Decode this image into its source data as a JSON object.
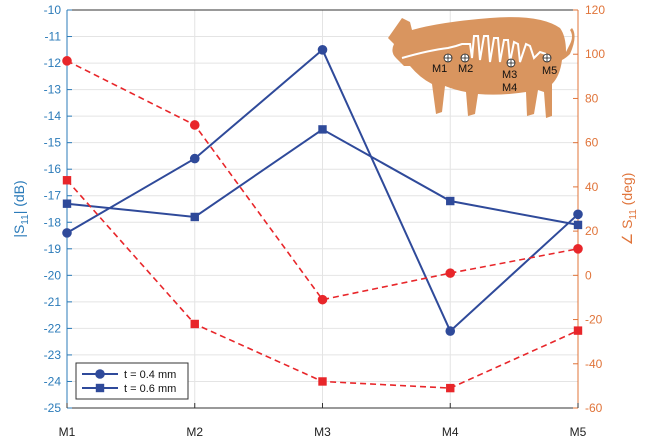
{
  "chart_data": {
    "type": "line",
    "categories": [
      "M1",
      "M2",
      "M3",
      "M4",
      "M5"
    ],
    "y_left": {
      "label": "|S11| (dB)",
      "label_main": "|S",
      "label_sub": "11",
      "label_tail": "| (dB)",
      "ylim": [
        -25,
        -10
      ],
      "ticks": [
        -10,
        -11,
        -12,
        -13,
        -14,
        -15,
        -16,
        -17,
        -18,
        -19,
        -20,
        -21,
        -22,
        -23,
        -24,
        -25
      ],
      "color": "#2b7bb9"
    },
    "y_right": {
      "label": "∠S11 (deg)",
      "label_main": "∠ S",
      "label_sub": "11",
      "label_tail": " (deg)",
      "ylim": [
        -60,
        120
      ],
      "ticks": [
        120,
        100,
        80,
        60,
        40,
        20,
        0,
        -20,
        -40,
        -60
      ],
      "color": "#e0743a"
    },
    "series": [
      {
        "name": "t = 0.4 mm",
        "axis": "left",
        "marker": "circle",
        "style": "solid",
        "color": "#2f4a9a",
        "values": [
          -18.4,
          -15.6,
          -11.5,
          -22.1,
          -17.7
        ]
      },
      {
        "name": "t = 0.6 mm",
        "axis": "left",
        "marker": "square",
        "style": "solid",
        "color": "#2f4a9a",
        "values": [
          -17.3,
          -17.8,
          -14.5,
          -17.2,
          -18.1
        ]
      },
      {
        "axis": "right",
        "marker": "circle",
        "style": "dashed",
        "color": "#e8262a",
        "values": [
          97,
          68,
          -11,
          1,
          12
        ]
      },
      {
        "axis": "right",
        "marker": "square",
        "style": "dashed",
        "color": "#e8262a",
        "values": [
          43,
          -22,
          -48,
          -51,
          -25
        ]
      }
    ],
    "legend": {
      "placement": "bottom-left",
      "entries": [
        "t = 0.4 mm",
        "t = 0.6 mm"
      ]
    },
    "grid": true
  },
  "inset": {
    "image": "pig-silhouette",
    "color": "#d9955f",
    "measurement_points": [
      "M1",
      "M2",
      "M3",
      "M4",
      "M5"
    ]
  }
}
